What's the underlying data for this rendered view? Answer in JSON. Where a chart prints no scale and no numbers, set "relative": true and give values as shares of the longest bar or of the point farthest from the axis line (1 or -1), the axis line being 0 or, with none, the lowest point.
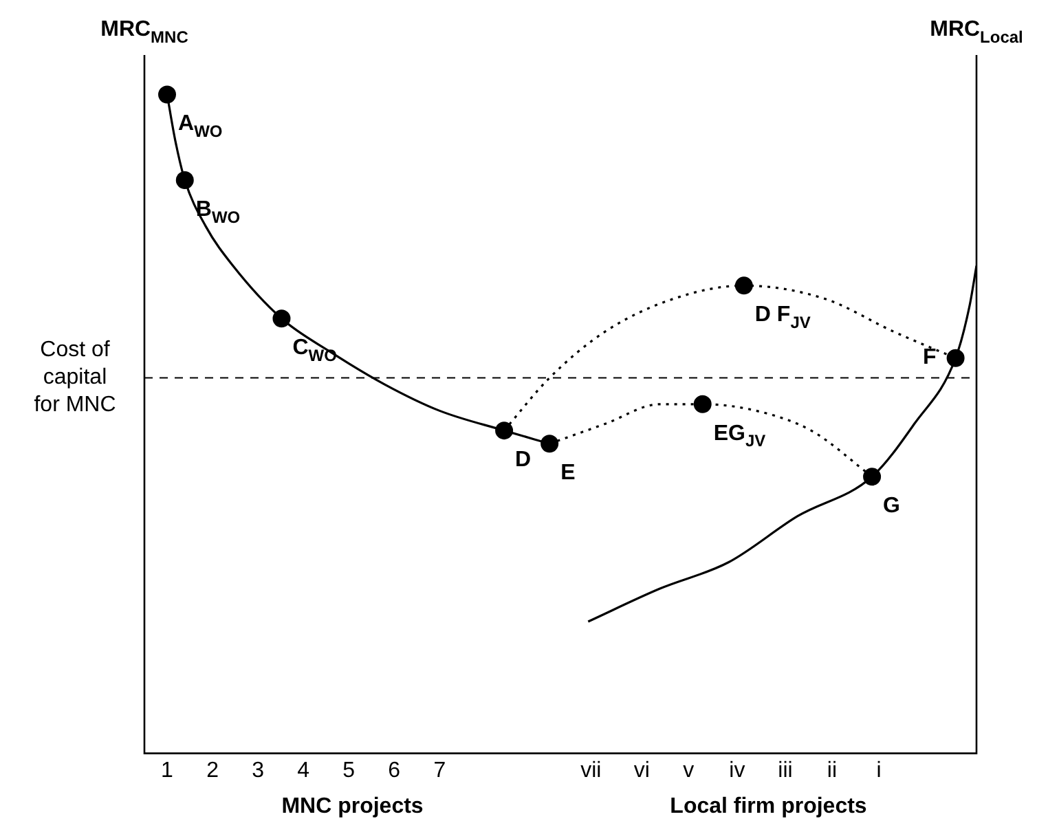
{
  "chart_data": {
    "type": "line",
    "relative": true,
    "ylabel": "MRC$_{MNC}$",
    "y2label": "MRC$_{Local}$",
    "xlim": [
      0.5,
      18.82
    ],
    "xticks": [
      1,
      2,
      3,
      4,
      5,
      6,
      7,
      {
        "value": 10.33,
        "label": "vii"
      },
      {
        "value": 11.45,
        "label": "vi"
      },
      {
        "value": 12.48,
        "label": "v"
      },
      {
        "value": 13.55,
        "label": "iv"
      },
      {
        "value": 14.61,
        "label": "iii"
      },
      {
        "value": 15.64,
        "label": "ii"
      },
      {
        "value": 16.67,
        "label": "i"
      }
    ],
    "tick_labels": "x",
    "grid": false,
    "legend": false,
    "series": [
      {
        "color": "#000000",
        "line_style": "solid",
        "x": [
          1,
          1.18,
          1.39,
          1.85,
          2.45,
          3.52,
          4.58,
          5.79,
          7,
          8.42,
          9.42
        ],
        "values": [
          1.0,
          0.93,
          0.87,
          0.8,
          0.74,
          0.66,
          0.61,
          0.56,
          0.52,
          0.49,
          0.47
        ]
      },
      {
        "color": "#000000",
        "line_style": "solid",
        "x": [
          10.27,
          11.85,
          13.36,
          14.88,
          16.52,
          17.45,
          18.36,
          18.67,
          18.82
        ],
        "values": [
          0.2,
          0.25,
          0.29,
          0.36,
          0.42,
          0.5,
          0.6,
          0.68,
          0.74
        ]
      },
      {
        "color": "#000000",
        "line_style": "dotted",
        "x": [
          8.42,
          9.42,
          10.64,
          12.15,
          13.7,
          15.48,
          17.0,
          18.36
        ],
        "values": [
          0.49,
          0.57,
          0.64,
          0.69,
          0.71,
          0.69,
          0.64,
          0.6
        ]
      },
      {
        "color": "#000000",
        "line_style": "dotted",
        "x": [
          9.42,
          10.64,
          11.85,
          12.79,
          13.97,
          15.18,
          16.52
        ],
        "values": [
          0.47,
          0.5,
          0.53,
          0.53,
          0.52,
          0.49,
          0.42
        ]
      },
      {
        "type": "scatter",
        "color": "#000000",
        "marker": "circle",
        "x": [
          1,
          1.39,
          3.52,
          8.42,
          9.42,
          13.7,
          12.79,
          18.36,
          16.52
        ],
        "values": [
          1.0,
          0.87,
          0.66,
          0.49,
          0.47,
          0.71,
          0.53,
          0.6,
          0.42
        ]
      }
    ],
    "ref_lines": [
      {
        "axis": "y",
        "value": 0.57,
        "label": "Cost of capital for MNC",
        "line_style": "dashed",
        "color": "#000000"
      }
    ],
    "annotations": [
      {
        "text": "A$_{WO}$",
        "x": 1,
        "y": 1.0
      },
      {
        "text": "B$_{WO}$",
        "x": 1.39,
        "y": 0.87
      },
      {
        "text": "C$_{WO}$",
        "x": 3.52,
        "y": 0.66
      },
      {
        "text": "D",
        "x": 8.42,
        "y": 0.49
      },
      {
        "text": "E",
        "x": 9.42,
        "y": 0.47
      },
      {
        "text": "D F$_{JV}$",
        "x": 13.7,
        "y": 0.71
      },
      {
        "text": "EG$_{JV}$",
        "x": 12.79,
        "y": 0.53
      },
      {
        "text": "F",
        "x": 18.36,
        "y": 0.6
      },
      {
        "text": "G",
        "x": 16.52,
        "y": 0.42
      },
      "MNC projects",
      "Local firm projects"
    ]
  }
}
